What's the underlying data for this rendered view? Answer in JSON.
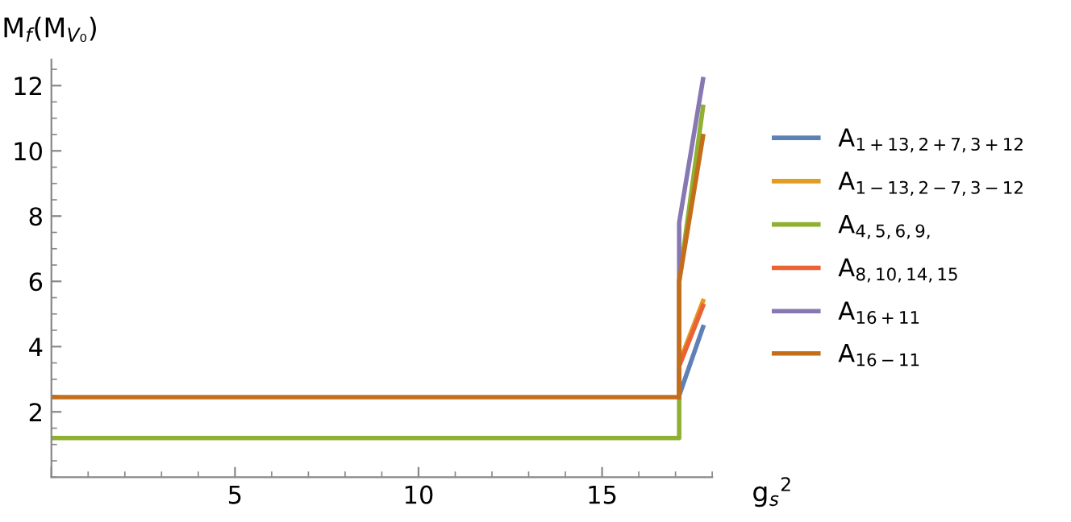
{
  "chart_data": {
    "type": "line",
    "xlabel": "g$_{s}$$^{2}$",
    "ylabel": "M$_{f}$(M$_{V₀}$)",
    "xlim": [
      0,
      18
    ],
    "ylim": [
      0,
      12.8
    ],
    "xticks": [
      {
        "value": 0,
        "label": null
      },
      5,
      10,
      15
    ],
    "yticks": [
      2,
      4,
      6,
      8,
      10,
      12
    ],
    "grid": false,
    "legend": "right",
    "marker": "none",
    "line_style": "solid",
    "series": [
      {
        "name": "A$_{1+13,2+7,3+12}$",
        "color": "#5e81b5",
        "x": [
          17.1,
          17.1,
          17.75
        ],
        "values": [
          2.45,
          2.5,
          4.6
        ]
      },
      {
        "name": "A$_{1−13,2−7,3−12}$",
        "color": "#e19c24",
        "x": [
          17.1,
          17.1,
          17.75
        ],
        "values": [
          2.45,
          3.5,
          5.4
        ]
      },
      {
        "name": "A$_{4,5,6,9,}$",
        "color": "#8fb032",
        "x": [
          0,
          17.1,
          17.1,
          17.75
        ],
        "values": [
          1.2,
          1.2,
          6.0,
          11.35
        ]
      },
      {
        "name": "A$_{8,10,14,15}$",
        "color": "#eb6235",
        "x": [
          17.1,
          17.1,
          17.75
        ],
        "values": [
          2.45,
          3.4,
          5.25
        ]
      },
      {
        "name": "A$_{16+11}$",
        "color": "#8778b3",
        "x": [
          17.1,
          17.1,
          17.75
        ],
        "values": [
          2.45,
          7.8,
          12.2
        ]
      },
      {
        "name": "A$_{16−11}$",
        "color": "#c56e1a",
        "x": [
          0,
          17.1,
          17.1,
          17.75
        ],
        "values": [
          2.45,
          2.45,
          6.0,
          10.45
        ]
      }
    ]
  }
}
